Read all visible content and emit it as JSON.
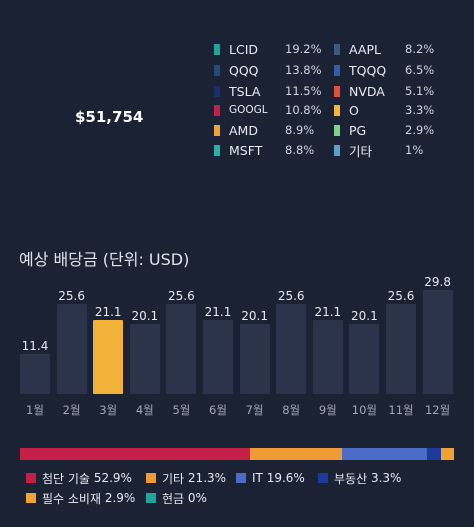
{
  "summary": {
    "total": "$51,754"
  },
  "holdings": [
    {
      "name": "LCID",
      "pct": "19.2%",
      "color": "#1fa59a"
    },
    {
      "name": "QQQ",
      "pct": "13.8%",
      "color": "#234a78"
    },
    {
      "name": "TSLA",
      "pct": "11.5%",
      "color": "#1c2d6e"
    },
    {
      "name": "GOOGL",
      "pct": "10.8%",
      "color": "#c2204a"
    },
    {
      "name": "AMD",
      "pct": "8.9%",
      "color": "#f0a03a"
    },
    {
      "name": "MSFT",
      "pct": "8.8%",
      "color": "#26b0a6"
    },
    {
      "name": "AAPL",
      "pct": "8.2%",
      "color": "#3b5a80"
    },
    {
      "name": "TQQQ",
      "pct": "6.5%",
      "color": "#2f5fa8"
    },
    {
      "name": "NVDA",
      "pct": "5.1%",
      "color": "#e0503a"
    },
    {
      "name": "O",
      "pct": "3.3%",
      "color": "#f3b534"
    },
    {
      "name": "PG",
      "pct": "2.9%",
      "color": "#7ed28a"
    },
    {
      "name": "기타",
      "pct": "1%",
      "color": "#5aa0c8"
    }
  ],
  "dividend_section": {
    "title": "예상 배당금 (단위: USD)"
  },
  "chart_data": {
    "type": "bar",
    "title": "예상 배당금 (단위: USD)",
    "categories": [
      "1월",
      "2월",
      "3월",
      "4월",
      "5월",
      "6월",
      "7월",
      "8월",
      "9월",
      "10월",
      "11월",
      "12월"
    ],
    "values": [
      11.4,
      25.6,
      21.1,
      20.1,
      25.6,
      21.1,
      20.1,
      25.6,
      21.1,
      20.1,
      25.6,
      29.8
    ],
    "highlight_index": 2,
    "highlight_color": "#f2b23a",
    "bar_color": "#2b344b",
    "ylim": [
      0,
      32
    ]
  },
  "sectors": [
    {
      "name": "첨단 기술",
      "pct": "52.9%",
      "value": 52.9,
      "color": "#c41f47"
    },
    {
      "name": "기타",
      "pct": "21.3%",
      "value": 21.3,
      "color": "#f09a35"
    },
    {
      "name": "IT",
      "pct": "19.6%",
      "value": 19.6,
      "color": "#4a6cc7"
    },
    {
      "name": "부동산",
      "pct": "3.3%",
      "value": 3.3,
      "color": "#1d3a9a"
    },
    {
      "name": "필수 소비재",
      "pct": "2.9%",
      "value": 2.9,
      "color": "#f2a233"
    },
    {
      "name": "현금",
      "pct": "0%",
      "value": 0,
      "color": "#1fa59a"
    }
  ]
}
